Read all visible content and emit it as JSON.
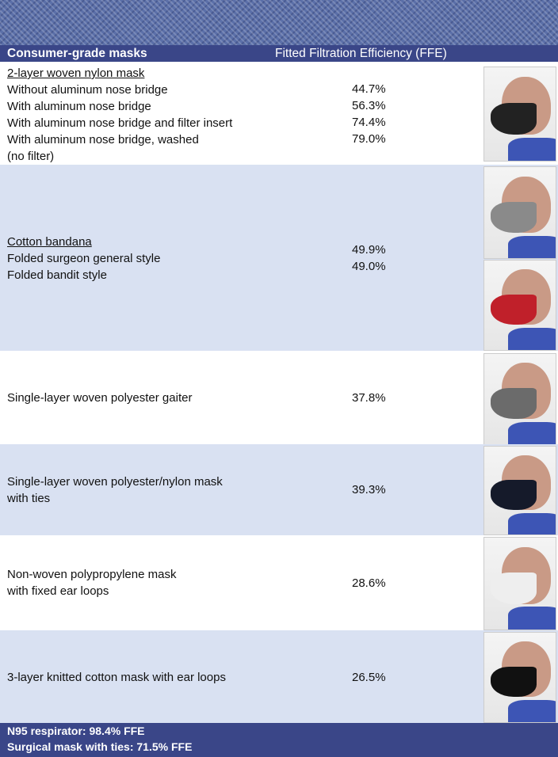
{
  "header": {
    "columns": [
      "Consumer-grade masks",
      "Fitted Filtration Efficiency (FFE)"
    ]
  },
  "rows": [
    {
      "title": "2-layer woven nylon mask",
      "lines": [
        "Without aluminum nose bridge",
        "With aluminum nose bridge",
        "With aluminum nose bridge and filter insert",
        "With aluminum nose bridge, washed",
        "(no filter)"
      ],
      "values": [
        "44.7%",
        "56.3%",
        "74.4%",
        "79.0%"
      ]
    },
    {
      "title": "Cotton bandana",
      "lines": [
        "Folded surgeon general style",
        "Folded bandit style"
      ],
      "values": [
        "49.9%",
        "49.0%"
      ]
    },
    {
      "lines": [
        "Single-layer woven polyester gaiter"
      ],
      "values": [
        "37.8%"
      ]
    },
    {
      "lines": [
        "Single-layer woven polyester/nylon mask",
        "with ties"
      ],
      "values": [
        "39.3%"
      ]
    },
    {
      "lines": [
        "Non-woven polypropylene mask",
        "with fixed ear loops"
      ],
      "values": [
        "28.6%"
      ]
    },
    {
      "lines": [
        "3-layer knitted cotton mask with ear loops"
      ],
      "values": [
        "26.5%"
      ]
    }
  ],
  "footer": [
    "N95 respirator: 98.4% FFE",
    "Surgical mask with ties: 71.5% FFE"
  ]
}
